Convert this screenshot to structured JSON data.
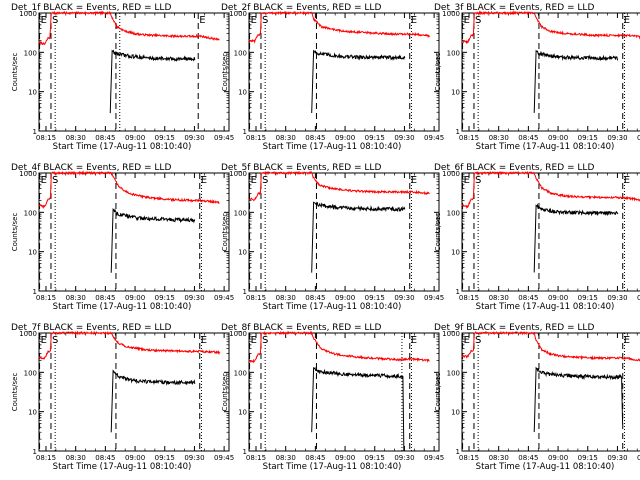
{
  "figure": {
    "common": {
      "ylabel": "Counts/sec",
      "xlabel": "Start Time (17-Aug-11 08:10:40)",
      "x_ticks": [
        "08:15",
        "08:30",
        "08:45",
        "09:00",
        "09:15",
        "09:30",
        "09:45"
      ],
      "y_ticks": [
        "1",
        "10",
        "100",
        "1000"
      ],
      "marker_labels": {
        "eclipse_end": "E",
        "saa": "S"
      },
      "colors": {
        "events": "#000000",
        "lld": "#ff0000",
        "axis": "#000000"
      }
    }
  },
  "chart_data": [
    {
      "type": "line",
      "title": "Det_1f BLACK = Events, RED = LLD",
      "x_unit": "minutes after 08:10:40",
      "xlim": [
        0,
        100
      ],
      "ylim": [
        1,
        1000
      ],
      "y_scale": "log",
      "markers": [
        {
          "label": "E",
          "x": 0.3
        },
        {
          "label": "S",
          "x": 6.3
        },
        {
          "label": "",
          "x": 40.5
        },
        {
          "label": "E",
          "x": 83.8
        }
      ],
      "dotted_lines_x": [
        8.5,
        42.5
      ],
      "series": [
        {
          "name": "LLD",
          "color": "#ff0000",
          "x": [
            0,
            3,
            4.5,
            4.8,
            5.8,
            6.4,
            37.5,
            38,
            41,
            45,
            50,
            55,
            60,
            70,
            80,
            85,
            90,
            95
          ],
          "y": [
            180,
            160,
            220,
            230,
            240,
            1000,
            1000,
            850,
            450,
            350,
            300,
            280,
            270,
            260,
            255,
            260,
            230,
            210
          ]
        },
        {
          "name": "Events",
          "color": "#000000",
          "x": [
            37.5,
            38.5,
            40,
            43,
            46,
            50,
            60,
            70,
            80,
            82
          ],
          "y": [
            3,
            110,
            95,
            88,
            82,
            78,
            70,
            68,
            68,
            68
          ]
        }
      ]
    },
    {
      "type": "line",
      "title": "Det_2f BLACK = Events, RED = LLD",
      "x_unit": "minutes after 08:10:40",
      "xlim": [
        0,
        100
      ],
      "ylim": [
        1,
        1000
      ],
      "y_scale": "log",
      "markers": [
        {
          "label": "E",
          "x": 0.3
        },
        {
          "label": "S",
          "x": 6.3
        },
        {
          "label": "",
          "x": 35.5
        },
        {
          "label": "E",
          "x": 84.6
        }
      ],
      "dotted_lines_x": [
        8.5,
        85.5
      ],
      "series": [
        {
          "name": "LLD",
          "color": "#ff0000",
          "x": [
            0,
            3,
            4.5,
            5,
            6,
            6.5,
            33,
            34,
            38,
            45,
            50,
            55,
            60,
            70,
            80,
            85,
            90,
            95
          ],
          "y": [
            200,
            190,
            260,
            280,
            290,
            1000,
            1000,
            700,
            450,
            380,
            340,
            330,
            320,
            300,
            290,
            290,
            280,
            260
          ]
        },
        {
          "name": "Events",
          "color": "#000000",
          "x": [
            33,
            34,
            36,
            40,
            45,
            50,
            60,
            70,
            80,
            82
          ],
          "y": [
            3,
            110,
            95,
            88,
            82,
            78,
            75,
            75,
            73,
            73
          ]
        }
      ]
    },
    {
      "type": "line",
      "title": "Det_3f BLACK = Events, RED = LLD",
      "x_unit": "minutes after 08:10:40",
      "xlim": [
        0,
        100
      ],
      "ylim": [
        1,
        1000
      ],
      "y_scale": "log",
      "markers": [
        {
          "label": "E",
          "x": 0.3
        },
        {
          "label": "S",
          "x": 6.3
        },
        {
          "label": "",
          "x": 40.5
        },
        {
          "label": "E",
          "x": 84.6
        }
      ],
      "dotted_lines_x": [
        8.5,
        85.5
      ],
      "series": [
        {
          "name": "LLD",
          "color": "#ff0000",
          "x": [
            0,
            3,
            4.5,
            5,
            6,
            6.5,
            38,
            39,
            42,
            46,
            50,
            55,
            60,
            70,
            80,
            85,
            90,
            95
          ],
          "y": [
            190,
            180,
            250,
            270,
            280,
            1000,
            1000,
            750,
            450,
            350,
            320,
            300,
            290,
            270,
            270,
            270,
            260,
            240
          ]
        },
        {
          "name": "Events",
          "color": "#000000",
          "x": [
            38,
            39,
            41,
            44,
            48,
            52,
            60,
            70,
            80,
            82
          ],
          "y": [
            3,
            110,
            92,
            85,
            80,
            75,
            72,
            72,
            72,
            72
          ]
        }
      ]
    },
    {
      "type": "line",
      "title": "Det_4f BLACK = Events, RED = LLD",
      "x_unit": "minutes after 08:10:40",
      "xlim": [
        0,
        100
      ],
      "ylim": [
        1,
        1000
      ],
      "y_scale": "log",
      "markers": [
        {
          "label": "E",
          "x": 0.3
        },
        {
          "label": "S",
          "x": 6.3
        },
        {
          "label": "",
          "x": 40.5
        },
        {
          "label": "E",
          "x": 84.6
        }
      ],
      "dotted_lines_x": [
        8.5,
        85.5
      ],
      "series": [
        {
          "name": "LLD",
          "color": "#ff0000",
          "x": [
            0,
            3,
            4.5,
            5,
            6,
            6.5,
            38,
            39,
            42,
            46,
            50,
            55,
            60,
            70,
            80,
            85,
            90,
            95
          ],
          "y": [
            150,
            140,
            200,
            220,
            230,
            1000,
            1000,
            800,
            450,
            330,
            280,
            250,
            230,
            210,
            200,
            200,
            190,
            175
          ]
        },
        {
          "name": "Events",
          "color": "#000000",
          "x": [
            38,
            39,
            41,
            44,
            48,
            52,
            60,
            70,
            80,
            82
          ],
          "y": [
            3,
            120,
            95,
            85,
            78,
            72,
            68,
            65,
            63,
            63
          ]
        }
      ]
    },
    {
      "type": "line",
      "title": "Det_5f BLACK = Events, RED = LLD",
      "x_unit": "minutes after 08:10:40",
      "xlim": [
        0,
        100
      ],
      "ylim": [
        1,
        1000
      ],
      "y_scale": "log",
      "markers": [
        {
          "label": "E",
          "x": 0.3
        },
        {
          "label": "S",
          "x": 6.3
        },
        {
          "label": "",
          "x": 35.5
        },
        {
          "label": "E",
          "x": 84.6
        }
      ],
      "dotted_lines_x": [
        8.5,
        85.5
      ],
      "series": [
        {
          "name": "LLD",
          "color": "#ff0000",
          "x": [
            0,
            3,
            4.5,
            5,
            6,
            6.5,
            33,
            34,
            37,
            42,
            48,
            55,
            60,
            70,
            80,
            85,
            90,
            95
          ],
          "y": [
            220,
            210,
            280,
            300,
            310,
            1000,
            1000,
            750,
            500,
            420,
            380,
            350,
            340,
            330,
            330,
            330,
            320,
            300
          ]
        },
        {
          "name": "Events",
          "color": "#000000",
          "x": [
            33,
            34,
            36,
            40,
            45,
            50,
            60,
            70,
            80,
            82
          ],
          "y": [
            3,
            180,
            160,
            145,
            135,
            130,
            125,
            122,
            120,
            120
          ]
        }
      ]
    },
    {
      "type": "line",
      "title": "Det_6f BLACK = Events, RED = LLD",
      "x_unit": "minutes after 08:10:40",
      "xlim": [
        0,
        100
      ],
      "ylim": [
        1,
        1000
      ],
      "y_scale": "log",
      "markers": [
        {
          "label": "E",
          "x": 0.3
        },
        {
          "label": "S",
          "x": 6.3
        },
        {
          "label": "",
          "x": 40.5
        },
        {
          "label": "E",
          "x": 84.6
        }
      ],
      "dotted_lines_x": [
        8.5,
        85.5
      ],
      "series": [
        {
          "name": "LLD",
          "color": "#ff0000",
          "x": [
            0,
            3,
            4.5,
            5,
            6,
            6.5,
            38,
            39,
            42,
            46,
            50,
            55,
            60,
            70,
            80,
            85,
            90,
            95
          ],
          "y": [
            150,
            140,
            200,
            215,
            225,
            1000,
            1000,
            750,
            420,
            320,
            280,
            260,
            250,
            240,
            240,
            235,
            220,
            200
          ]
        },
        {
          "name": "Events",
          "color": "#000000",
          "x": [
            38,
            39,
            41,
            44,
            48,
            52,
            60,
            70,
            80,
            82
          ],
          "y": [
            3,
            150,
            125,
            112,
            105,
            100,
            98,
            97,
            97,
            97
          ]
        }
      ]
    },
    {
      "type": "line",
      "title": "Det_7f BLACK = Events, RED = LLD",
      "x_unit": "minutes after 08:10:40",
      "xlim": [
        0,
        100
      ],
      "ylim": [
        1,
        1000
      ],
      "y_scale": "log",
      "markers": [
        {
          "label": "E",
          "x": 0.3
        },
        {
          "label": "S",
          "x": 6.3
        },
        {
          "label": "",
          "x": 40.5
        },
        {
          "label": "E",
          "x": 84.6
        }
      ],
      "dotted_lines_x": [
        8.5,
        85.5
      ],
      "series": [
        {
          "name": "LLD",
          "color": "#ff0000",
          "x": [
            0,
            3,
            4.5,
            5,
            6,
            6.5,
            38,
            39,
            42,
            46,
            50,
            55,
            60,
            70,
            80,
            85,
            90,
            95
          ],
          "y": [
            240,
            230,
            320,
            340,
            350,
            1000,
            1000,
            800,
            550,
            450,
            420,
            380,
            360,
            350,
            340,
            340,
            330,
            320
          ]
        },
        {
          "name": "Events",
          "color": "#000000",
          "x": [
            38,
            39,
            41,
            44,
            48,
            52,
            60,
            70,
            80,
            82
          ],
          "y": [
            3,
            110,
            85,
            72,
            65,
            60,
            57,
            55,
            55,
            55
          ]
        }
      ]
    },
    {
      "type": "line",
      "title": "Det_8f BLACK = Events, RED = LLD",
      "x_unit": "minutes after 08:10:40",
      "xlim": [
        0,
        100
      ],
      "ylim": [
        1,
        1000
      ],
      "y_scale": "log",
      "markers": [
        {
          "label": "E",
          "x": 0.3
        },
        {
          "label": "S",
          "x": 6.3
        },
        {
          "label": "",
          "x": 35.5
        },
        {
          "label": "E",
          "x": 84.6
        }
      ],
      "dotted_lines_x": [
        8.5,
        80.5,
        85.5
      ],
      "series": [
        {
          "name": "LLD",
          "color": "#ff0000",
          "x": [
            0,
            3,
            4.5,
            5,
            6,
            6.5,
            33,
            34,
            38,
            44,
            50,
            55,
            60,
            70,
            80,
            85,
            90,
            95
          ],
          "y": [
            200,
            190,
            270,
            290,
            300,
            1000,
            1000,
            750,
            400,
            300,
            270,
            250,
            240,
            220,
            210,
            220,
            210,
            200
          ]
        },
        {
          "name": "Events",
          "color": "#000000",
          "x": [
            33,
            34,
            36,
            40,
            45,
            50,
            60,
            70,
            80,
            81,
            81.5
          ],
          "y": [
            3,
            130,
            110,
            100,
            95,
            90,
            85,
            82,
            80,
            80,
            1
          ]
        }
      ]
    },
    {
      "type": "line",
      "title": "Det_9f BLACK = Events, RED = LLD",
      "x_unit": "minutes after 08:10:40",
      "xlim": [
        0,
        100
      ],
      "ylim": [
        1,
        1000
      ],
      "y_scale": "log",
      "markers": [
        {
          "label": "E",
          "x": 0.3
        },
        {
          "label": "S",
          "x": 6.3
        },
        {
          "label": "",
          "x": 40.5
        },
        {
          "label": "E",
          "x": 84.6
        }
      ],
      "dotted_lines_x": [
        8.5,
        85.5
      ],
      "series": [
        {
          "name": "LLD",
          "color": "#ff0000",
          "x": [
            0,
            3,
            4.5,
            5,
            6,
            6.5,
            38,
            39,
            42,
            46,
            50,
            55,
            60,
            70,
            80,
            85,
            90,
            95
          ],
          "y": [
            260,
            250,
            330,
            350,
            360,
            1000,
            1000,
            650,
            380,
            300,
            270,
            250,
            240,
            230,
            230,
            230,
            215,
            200
          ]
        },
        {
          "name": "Events",
          "color": "#000000",
          "x": [
            38,
            39,
            41,
            44,
            48,
            52,
            60,
            70,
            80,
            82,
            84,
            84.5
          ],
          "y": [
            3,
            130,
            105,
            92,
            88,
            84,
            80,
            78,
            76,
            76,
            76,
            5
          ]
        }
      ]
    }
  ]
}
